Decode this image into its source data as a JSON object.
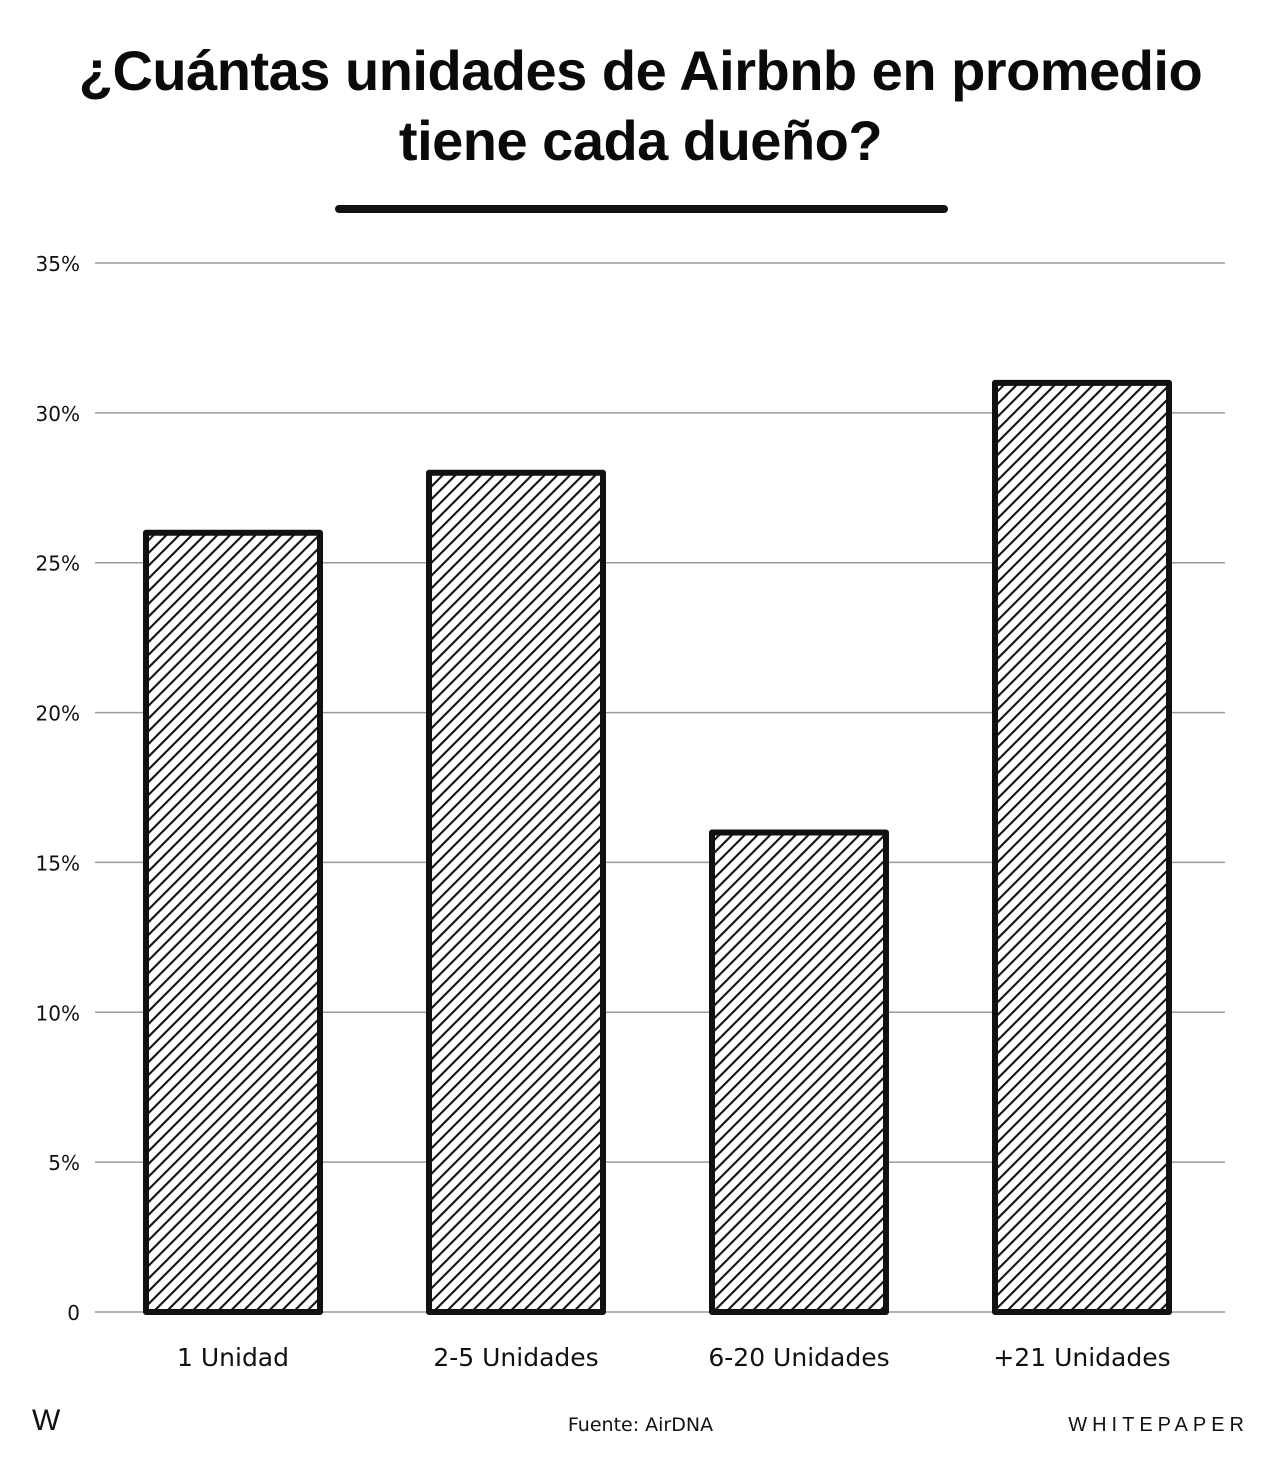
{
  "chart_data": {
    "type": "bar",
    "title": "¿Cuántas unidades de Airbnb en promedio tiene cada dueño?",
    "categories": [
      "1 Unidad",
      "2-5 Unidades",
      "6-20 Unidades",
      "+21 Unidades"
    ],
    "values": [
      26,
      28,
      16,
      31
    ],
    "ylim": [
      0,
      35
    ],
    "yticks": [
      0,
      5,
      10,
      15,
      20,
      25,
      30,
      35
    ],
    "ytick_labels": [
      "0",
      "5%",
      "10%",
      "15%",
      "20%",
      "25%",
      "30%",
      "35%"
    ],
    "grid": true,
    "bar_style": "diagonal hatch, black outline",
    "colors": {
      "bar_outline": "#111111",
      "hatch": "#111111",
      "grid": "#9a9a9a"
    }
  },
  "footer": {
    "logo": "W",
    "source": "Fuente: AirDNA",
    "brand": "WHITEPAPER"
  }
}
